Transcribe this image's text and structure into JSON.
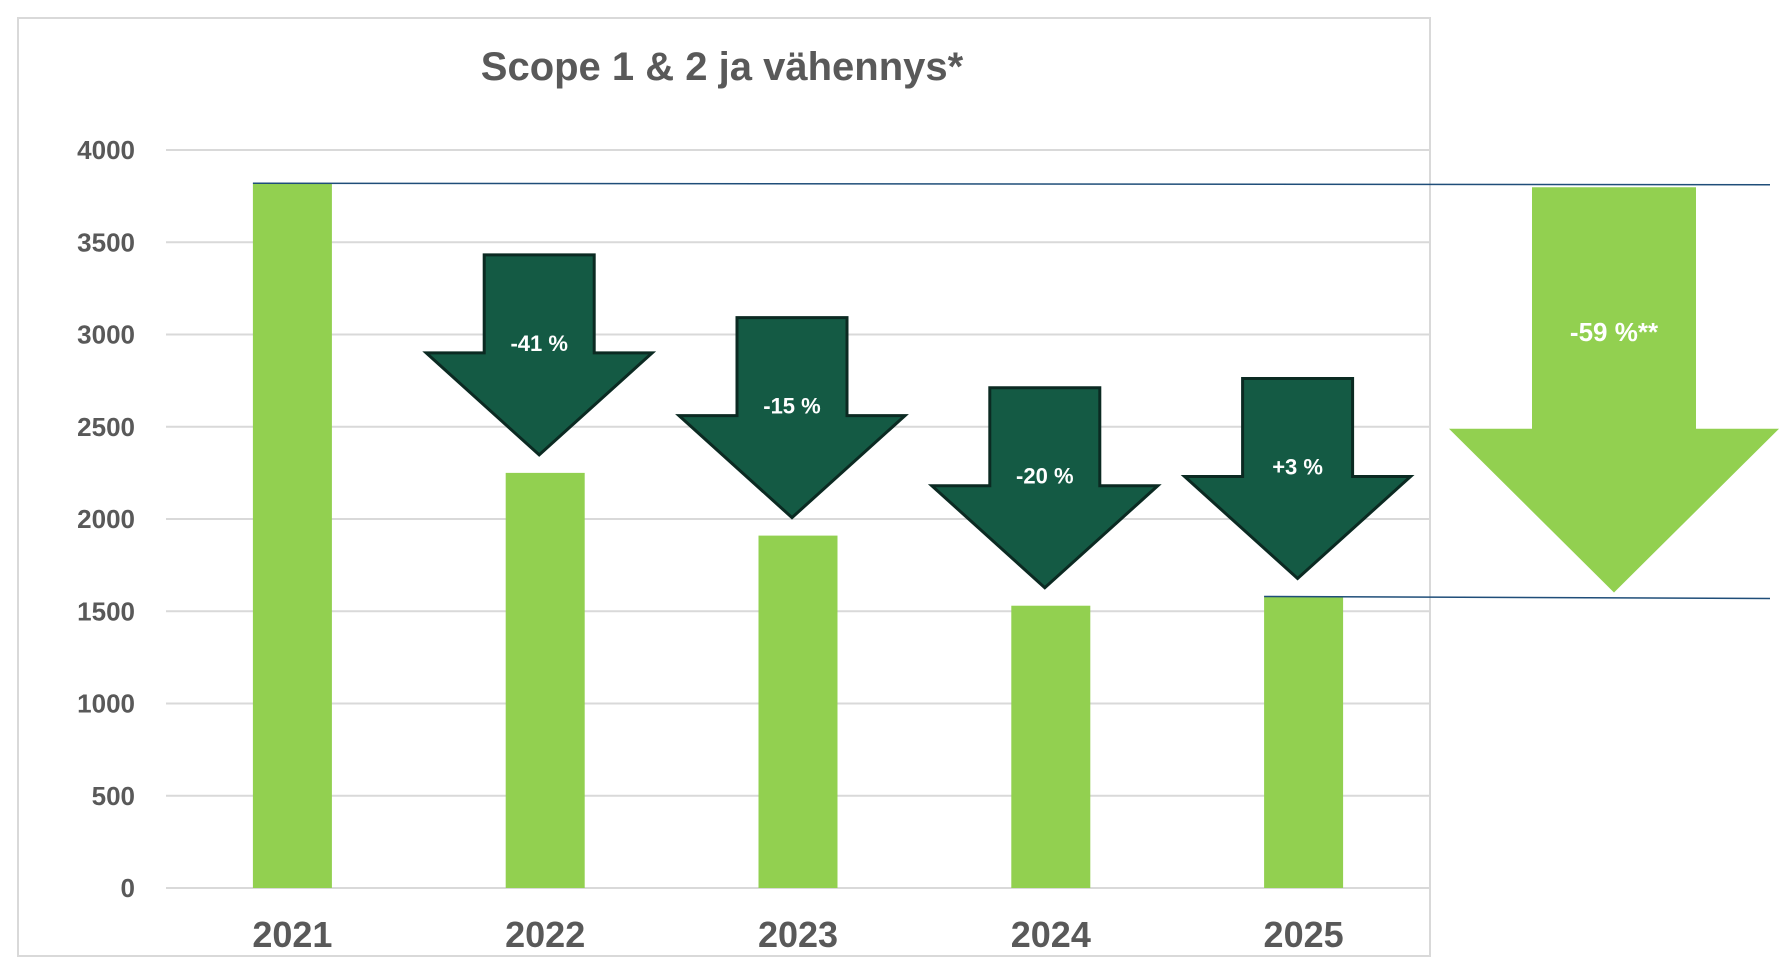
{
  "colors": {
    "bar": "#92D050",
    "arrow_fill": "#145A44",
    "arrow_stroke": "#0B2A22",
    "total_arrow": "#92D050",
    "grid": "#D9D9D9",
    "frame": "#D9D9D9",
    "reference_line": "#1F4E79",
    "text": "#595959"
  },
  "chart_data": {
    "type": "bar",
    "title": "Scope 1 & 2 ja vähennys*",
    "xlabel": "",
    "ylabel": "",
    "categories": [
      "2021",
      "2022",
      "2023",
      "2024",
      "2025"
    ],
    "values": [
      3820,
      2250,
      1910,
      1530,
      1580
    ],
    "ylim": [
      0,
      4000
    ],
    "yticks": [
      "0",
      "500",
      "1000",
      "1500",
      "2000",
      "2500",
      "3000",
      "3500",
      "4000"
    ],
    "grid": true,
    "legend": "none",
    "annotations": {
      "yearly_changes": [
        {
          "category": "2022",
          "label": "-41 %"
        },
        {
          "category": "2023",
          "label": "-15 %"
        },
        {
          "category": "2024",
          "label": "-20 %"
        },
        {
          "category": "2025",
          "label": "+3 %"
        }
      ],
      "total_change": {
        "label": "-59 %**",
        "from_value": 3820,
        "to_value": 1580
      }
    }
  }
}
